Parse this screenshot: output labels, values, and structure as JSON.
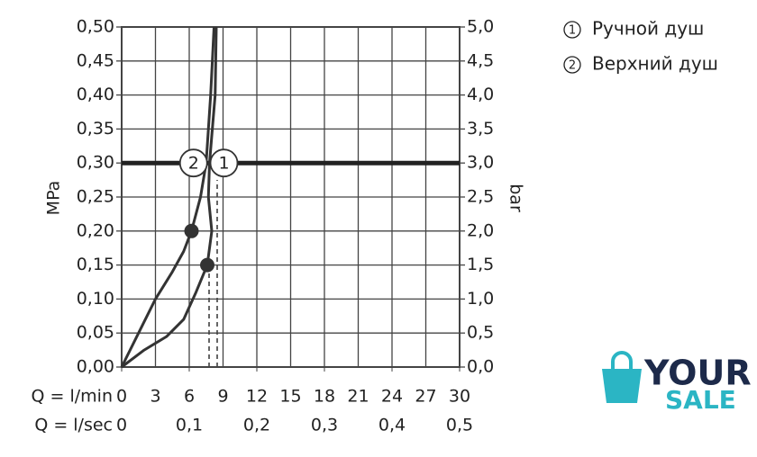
{
  "chart_data": {
    "type": "line",
    "y_label": "MPa",
    "y2_label": "bar",
    "x_label": "Q = l/min",
    "x2_label": "Q = l/sec",
    "xlim": [
      0,
      30
    ],
    "xticks": [
      0,
      3,
      6,
      9,
      12,
      15,
      18,
      21,
      24,
      27,
      30
    ],
    "x2lim": [
      0,
      0.5
    ],
    "x2ticks": [
      0,
      {
        "value": 0.1,
        "label": "0,1"
      },
      {
        "value": 0.2,
        "label": "0,2"
      },
      {
        "value": 0.3,
        "label": "0,3"
      },
      {
        "value": 0.4,
        "label": "0,4"
      },
      {
        "value": 0.5,
        "label": "0,5"
      }
    ],
    "ylim": [
      0,
      0.5
    ],
    "yticks": [
      {
        "value": 0,
        "label": "0,00"
      },
      {
        "value": 0.05,
        "label": "0,05"
      },
      {
        "value": 0.1,
        "label": "0,10"
      },
      {
        "value": 0.15,
        "label": "0,15"
      },
      {
        "value": 0.2,
        "label": "0,20"
      },
      {
        "value": 0.25,
        "label": "0,25"
      },
      {
        "value": 0.3,
        "label": "0,30"
      },
      {
        "value": 0.35,
        "label": "0,35"
      },
      {
        "value": 0.4,
        "label": "0,40"
      },
      {
        "value": 0.45,
        "label": "0,45"
      },
      {
        "value": 0.5,
        "label": "0,50"
      }
    ],
    "y2lim": [
      0,
      5
    ],
    "y2ticks": [
      {
        "value": 0,
        "label": "0,0"
      },
      {
        "value": 0.5,
        "label": "0,5"
      },
      {
        "value": 1,
        "label": "1,0"
      },
      {
        "value": 1.5,
        "label": "1,5"
      },
      {
        "value": 2,
        "label": "2,0"
      },
      {
        "value": 2.5,
        "label": "2,5"
      },
      {
        "value": 3,
        "label": "3,0"
      },
      {
        "value": 3.5,
        "label": "3,5"
      },
      {
        "value": 4,
        "label": "4,0"
      },
      {
        "value": 4.5,
        "label": "4,5"
      },
      {
        "value": 5,
        "label": "5,0"
      }
    ],
    "grid": true,
    "hline": 0.3,
    "series": [
      {
        "name": "Ручной душ",
        "label": "1",
        "color": "#333333",
        "marker_index": 5,
        "x": [
          0,
          2,
          4,
          5.5,
          6.6,
          7.6,
          8.0,
          7.7,
          7.8,
          8.3,
          8.4
        ],
        "values": [
          0,
          0.025,
          0.045,
          0.07,
          0.11,
          0.15,
          0.2,
          0.25,
          0.3,
          0.4,
          0.5
        ]
      },
      {
        "name": "Верхний душ",
        "label": "2",
        "color": "#333333",
        "marker_index": 5,
        "x": [
          0,
          1.5,
          3,
          4.5,
          5.5,
          6.2,
          7.0,
          7.5,
          7.9,
          8.2
        ],
        "values": [
          0,
          0.05,
          0.1,
          0.14,
          0.17,
          0.2,
          0.25,
          0.3,
          0.4,
          0.5
        ]
      }
    ]
  },
  "logo": {
    "line1": "YOUR",
    "line2": "SALE"
  }
}
